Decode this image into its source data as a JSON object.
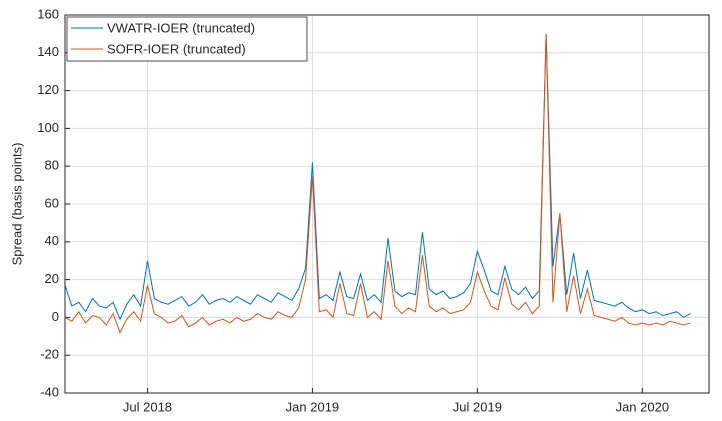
{
  "chart_data": {
    "type": "line",
    "ylabel": "Spread (basis points)",
    "categories": [
      null,
      null,
      null,
      null,
      null,
      null,
      null,
      null,
      null,
      null,
      null,
      null,
      "Jul 2018",
      null,
      null,
      null,
      null,
      null,
      null,
      null,
      null,
      null,
      null,
      null,
      null,
      null,
      null,
      null,
      null,
      null,
      null,
      null,
      null,
      null,
      null,
      null,
      "Jan 2019",
      null,
      null,
      null,
      null,
      null,
      null,
      null,
      null,
      null,
      null,
      null,
      null,
      null,
      null,
      null,
      null,
      null,
      null,
      null,
      null,
      null,
      null,
      null,
      "Jul 2019",
      null,
      null,
      null,
      null,
      null,
      null,
      null,
      null,
      null,
      null,
      null,
      null,
      null,
      null,
      null,
      null,
      null,
      null,
      null,
      null,
      null,
      null,
      null,
      "Jan 2020",
      null,
      null,
      null,
      null,
      null,
      null,
      null
    ],
    "series": [
      {
        "name": "VWATR-IOER (truncated)",
        "color": "#0072bd",
        "values": [
          17,
          6,
          8,
          3,
          10,
          6,
          5,
          8,
          -1,
          7,
          12,
          6,
          30,
          10,
          8,
          7,
          9,
          11,
          6,
          8,
          12,
          7,
          9,
          10,
          8,
          11,
          9,
          7,
          12,
          10,
          8,
          13,
          11,
          9,
          15,
          26,
          82,
          10,
          12,
          9,
          24,
          11,
          10,
          23,
          9,
          12,
          8,
          42,
          14,
          11,
          13,
          12,
          45,
          15,
          12,
          14,
          10,
          11,
          13,
          18,
          35,
          25,
          14,
          12,
          27,
          15,
          12,
          16,
          10,
          14,
          150,
          27,
          55,
          12,
          34,
          10,
          25,
          9,
          8,
          7,
          6,
          8,
          5,
          3,
          4,
          2,
          3,
          1,
          2,
          3,
          0,
          2
        ]
      },
      {
        "name": "SOFR-IOER (truncated)",
        "color": "#d95319",
        "values": [
          0,
          -2,
          3,
          -3,
          1,
          0,
          -4,
          2,
          -8,
          -1,
          3,
          -2,
          17,
          2,
          0,
          -3,
          -2,
          1,
          -5,
          -3,
          0,
          -4,
          -2,
          -1,
          -3,
          0,
          -2,
          -1,
          2,
          0,
          -1,
          3,
          1,
          0,
          5,
          20,
          75,
          3,
          4,
          0,
          18,
          2,
          1,
          18,
          0,
          3,
          -1,
          30,
          6,
          2,
          5,
          3,
          33,
          6,
          3,
          5,
          2,
          3,
          4,
          8,
          24,
          14,
          6,
          4,
          21,
          7,
          4,
          8,
          2,
          6,
          150,
          8,
          55,
          3,
          22,
          2,
          15,
          1,
          0,
          -1,
          -2,
          0,
          -3,
          -4,
          -3,
          -4,
          -3,
          -4,
          -2,
          -3,
          -4,
          -3
        ]
      }
    ],
    "ylim": [
      -40,
      160
    ],
    "yticks": [
      -40,
      -20,
      0,
      20,
      40,
      60,
      80,
      100,
      120,
      140,
      160
    ],
    "grid": true,
    "legend": "upper left"
  }
}
